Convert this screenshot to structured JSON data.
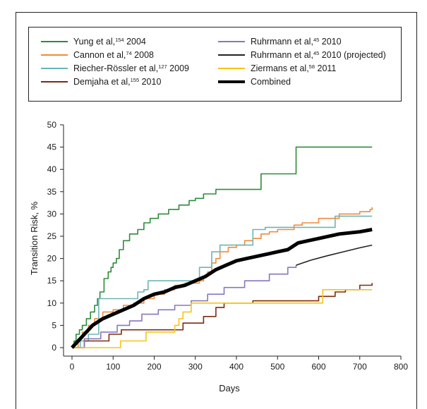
{
  "chart_data": {
    "type": "line",
    "title": "",
    "xlabel": "Days",
    "ylabel": "Transition Risk, %",
    "xlim": [
      0,
      800
    ],
    "ylim": [
      0,
      50
    ],
    "xticks": [
      "0",
      "100",
      "200",
      "300",
      "400",
      "500",
      "600",
      "700",
      "800"
    ],
    "yticks": [
      "0",
      "5",
      "10",
      "15",
      "20",
      "25",
      "30",
      "35",
      "40",
      "45",
      "50"
    ],
    "grid": false,
    "legend_position": "top",
    "series": [
      {
        "name": "Yung et al, 2004",
        "ref": "154",
        "color": "#2e8b3a",
        "width": 1.6,
        "step": true,
        "x": [
          0,
          5,
          10,
          18,
          25,
          35,
          45,
          55,
          62,
          68,
          78,
          88,
          95,
          100,
          108,
          115,
          125,
          140,
          160,
          175,
          190,
          210,
          235,
          260,
          285,
          300,
          320,
          350,
          400,
          460,
          545,
          730
        ],
        "y": [
          0,
          1.5,
          3,
          4,
          5,
          6.5,
          8,
          9.5,
          11,
          12.5,
          15.5,
          17,
          18,
          19,
          20,
          22,
          24,
          25.5,
          26.5,
          28,
          29,
          30,
          31,
          32,
          33,
          33.5,
          34.5,
          35.5,
          35.5,
          39,
          45,
          45
        ]
      },
      {
        "name": "Cannon et al, 2008",
        "ref": "74",
        "color": "#f08a3c",
        "width": 1.6,
        "step": true,
        "x": [
          0,
          15,
          25,
          40,
          55,
          75,
          100,
          125,
          150,
          175,
          200,
          225,
          250,
          275,
          310,
          320,
          330,
          340,
          350,
          360,
          380,
          400,
          420,
          440,
          460,
          480,
          500,
          540,
          560,
          600,
          650,
          700,
          725,
          730
        ],
        "y": [
          0,
          2,
          3.5,
          5,
          6.5,
          8,
          8.5,
          9.5,
          10,
          11,
          12,
          13,
          14,
          14.5,
          15,
          16,
          17,
          19,
          20,
          21.5,
          22.5,
          23,
          24,
          24.5,
          25.5,
          26,
          26.5,
          27.5,
          28,
          29,
          30,
          30.5,
          31,
          31.5
        ]
      },
      {
        "name": "Riecher-Rössler et al, 2009",
        "ref": "127",
        "color": "#6cb5b5",
        "width": 1.6,
        "step": true,
        "x": [
          0,
          20,
          40,
          65,
          130,
          160,
          175,
          185,
          300,
          310,
          340,
          360,
          440,
          470,
          640,
          730
        ],
        "y": [
          0,
          1.5,
          3,
          11,
          11,
          12.5,
          13,
          15,
          15,
          18,
          21.5,
          23,
          26.5,
          27,
          29.5,
          29.5
        ]
      },
      {
        "name": "Demjaha et al, 2010",
        "ref": "155",
        "color": "#7d2a12",
        "width": 1.6,
        "step": true,
        "x": [
          0,
          30,
          90,
          120,
          250,
          270,
          320,
          350,
          370,
          440,
          600,
          640,
          665,
          700,
          730
        ],
        "y": [
          0,
          1.5,
          3,
          4,
          4,
          5.5,
          7,
          9,
          10,
          10.5,
          11.5,
          12.5,
          13,
          14,
          14.5
        ]
      },
      {
        "name": "Ruhrmann et al, 2010",
        "ref": "45",
        "color": "#8877bb",
        "width": 1.6,
        "step": true,
        "x": [
          0,
          30,
          70,
          110,
          140,
          170,
          210,
          250,
          290,
          330,
          370,
          420,
          480,
          525,
          545
        ],
        "y": [
          0,
          2,
          3.5,
          5,
          6,
          7.5,
          8.5,
          9.5,
          10.5,
          12,
          13.5,
          15,
          16.5,
          18,
          18.5
        ]
      },
      {
        "name": "Ruhrmann et al, 2010 (projected)",
        "ref": "45",
        "color": "#222222",
        "width": 1.6,
        "step": false,
        "x": [
          545,
          580,
          620,
          660,
          700,
          730
        ],
        "y": [
          18.5,
          19.6,
          20.6,
          21.5,
          22.4,
          23
        ]
      },
      {
        "name": "Ziermans et al, 2011",
        "ref": "58",
        "color": "#f7c419",
        "width": 1.6,
        "step": true,
        "x": [
          0,
          118,
          180,
          250,
          260,
          270,
          290,
          340,
          590,
          610,
          730
        ],
        "y": [
          0,
          1.5,
          3.5,
          5,
          6.5,
          8,
          10,
          10,
          10,
          13,
          13
        ]
      },
      {
        "name": "Combined",
        "ref": "",
        "color": "#000000",
        "width": 5,
        "step": false,
        "x": [
          0,
          25,
          50,
          75,
          100,
          125,
          150,
          175,
          200,
          225,
          250,
          275,
          300,
          325,
          350,
          375,
          400,
          425,
          450,
          475,
          500,
          525,
          550,
          575,
          600,
          650,
          700,
          730
        ],
        "y": [
          0,
          2.5,
          5,
          6.5,
          7.5,
          8.5,
          9.5,
          11,
          12,
          12.5,
          13.5,
          14,
          15,
          16,
          17.5,
          18.5,
          19.5,
          20,
          20.5,
          21,
          21.5,
          22,
          23.5,
          24,
          24.5,
          25.5,
          26,
          26.5
        ]
      }
    ]
  }
}
